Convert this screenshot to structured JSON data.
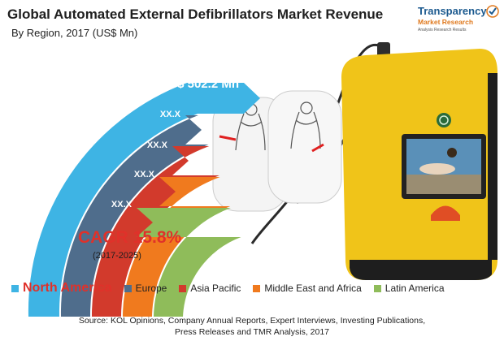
{
  "title": "Global Automated External Defibrillators Market Revenue",
  "subtitle": "By Region, 2017 (US$ Mn)",
  "logo": {
    "line1": "Transparency",
    "line2": "Market Research",
    "line3": "Analysis Research Results"
  },
  "chart_data": {
    "type": "bar",
    "title": "Global Automated External Defibrillators Market Revenue",
    "subtitle": "By Region, 2017 (US$ Mn)",
    "categories": [
      "North America",
      "Europe",
      "Asia Pacific",
      "Middle East and Africa",
      "Latin America"
    ],
    "value_labels": [
      "US$ 502.2 Mn",
      "XX.X",
      "XX.X",
      "XX.X",
      "XX.X"
    ],
    "values": [
      502.2,
      null,
      null,
      null,
      null
    ],
    "colors": [
      "#3eb4e4",
      "#4f6d8c",
      "#d23a2c",
      "#f07a1e",
      "#8fbc5a"
    ],
    "legend_position": "bottom"
  },
  "cagr": {
    "label": "CAGR 15.8%",
    "period": "(2017-2025)"
  },
  "source": {
    "line1": "Source: KOL Opinions, Company Annual Reports, Expert Interviews, Investing Publications,",
    "line2": "Press Releases and TMR Analysis, 2017"
  }
}
